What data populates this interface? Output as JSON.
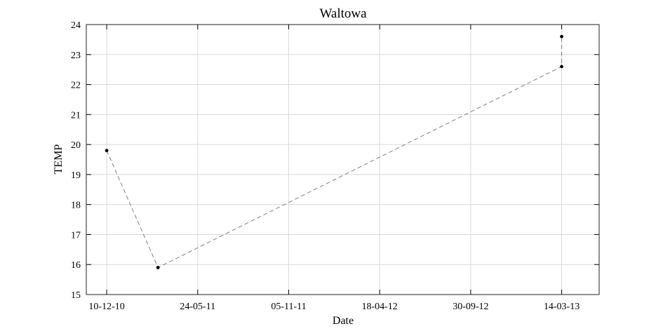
{
  "chart_data": {
    "type": "line",
    "title": "Waltowa",
    "xlabel": "Date",
    "ylabel": "TEMP",
    "x_ticks": [
      {
        "date": "2010-12-10",
        "label": "10-12-10"
      },
      {
        "date": "2011-05-24",
        "label": "24-05-11"
      },
      {
        "date": "2011-11-05",
        "label": "05-11-11"
      },
      {
        "date": "2012-04-18",
        "label": "18-04-12"
      },
      {
        "date": "2012-09-30",
        "label": "30-09-12"
      },
      {
        "date": "2013-03-14",
        "label": "14-03-13"
      }
    ],
    "xlim": [
      "2010-11-03",
      "2013-05-21"
    ],
    "ylim": [
      15,
      24
    ],
    "y_ticks": [
      15,
      16,
      17,
      18,
      19,
      20,
      21,
      22,
      23,
      24
    ],
    "grid": true,
    "series": [
      {
        "x": [
          "2010-12-10",
          "2011-03-13",
          "2013-03-14",
          "2013-03-14"
        ],
        "y": [
          19.8,
          15.9,
          22.6,
          23.6
        ],
        "line_style": "dashed",
        "line_color": "#7f7f7f",
        "marker_color": "#000000"
      }
    ]
  }
}
